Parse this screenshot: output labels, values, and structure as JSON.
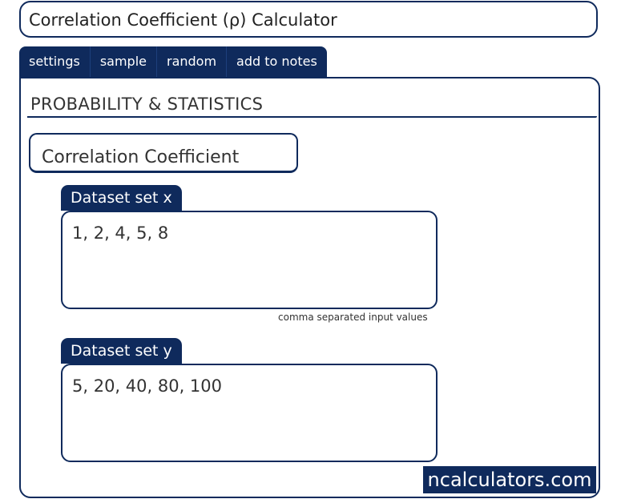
{
  "app": {
    "title": "Correlation Coefficient (ρ) Calculator"
  },
  "tabs": [
    {
      "label": "settings"
    },
    {
      "label": "sample"
    },
    {
      "label": "random"
    },
    {
      "label": "add to notes"
    }
  ],
  "section": {
    "category": "PROBABILITY & STATISTICS",
    "calculator_name": "Correlation Coefficient"
  },
  "fields": {
    "x": {
      "label": "Dataset set x",
      "value": "1, 2, 4, 5, 8",
      "hint": "comma separated input values"
    },
    "y": {
      "label": "Dataset set y",
      "value": "5, 20, 40, 80, 100"
    }
  },
  "brand": {
    "text": "ncalculators.com"
  },
  "colors": {
    "accent": "#0f2a5c"
  }
}
